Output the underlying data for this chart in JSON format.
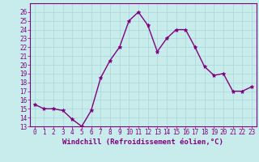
{
  "x": [
    0,
    1,
    2,
    3,
    4,
    5,
    6,
    7,
    8,
    9,
    10,
    11,
    12,
    13,
    14,
    15,
    16,
    17,
    18,
    19,
    20,
    21,
    22,
    23
  ],
  "y": [
    15.5,
    15.0,
    15.0,
    14.8,
    13.8,
    13.0,
    14.8,
    18.5,
    20.5,
    22.0,
    25.0,
    26.0,
    24.5,
    21.5,
    23.0,
    24.0,
    24.0,
    22.0,
    19.8,
    18.8,
    19.0,
    17.0,
    17.0,
    17.5
  ],
  "line_color": "#800080",
  "marker_color": "#800080",
  "bg_color": "#c8ecec",
  "grid_color": "#b0dada",
  "xlabel": "Windchill (Refroidissement éolien,°C)",
  "xlabel_color": "#800080",
  "tick_color": "#800080",
  "spine_color": "#800080",
  "ylim": [
    13,
    27
  ],
  "xlim": [
    -0.5,
    23.5
  ],
  "yticks": [
    13,
    14,
    15,
    16,
    17,
    18,
    19,
    20,
    21,
    22,
    23,
    24,
    25,
    26
  ],
  "xticks": [
    0,
    1,
    2,
    3,
    4,
    5,
    6,
    7,
    8,
    9,
    10,
    11,
    12,
    13,
    14,
    15,
    16,
    17,
    18,
    19,
    20,
    21,
    22,
    23
  ],
  "xtick_labels": [
    "0",
    "1",
    "2",
    "3",
    "4",
    "5",
    "6",
    "7",
    "8",
    "9",
    "10",
    "11",
    "12",
    "13",
    "14",
    "15",
    "16",
    "17",
    "18",
    "19",
    "20",
    "21",
    "22",
    "23"
  ],
  "tick_fontsize": 5.5,
  "xlabel_fontsize": 6.5,
  "linewidth": 1.0,
  "markersize": 3.5
}
